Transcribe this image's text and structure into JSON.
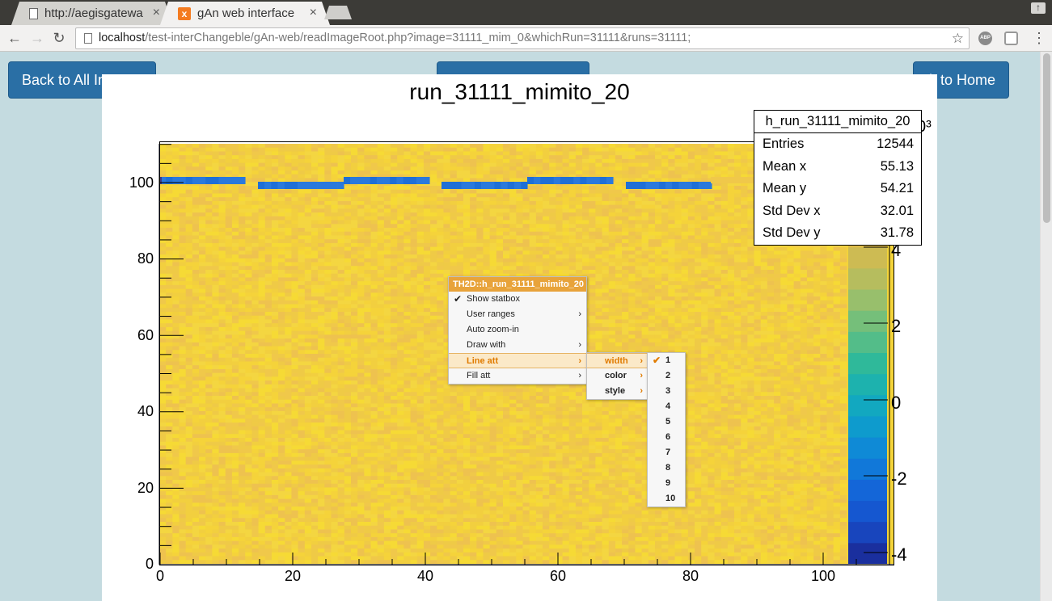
{
  "browser": {
    "tabs": [
      {
        "title": "http://aegisgatewa",
        "active": false,
        "icon": "page-icon"
      },
      {
        "title": "gAn web interface",
        "active": true,
        "icon": "xampp-icon"
      }
    ],
    "url_host": "localhost",
    "url_path": "/test-interChangeble/gAn-web/readImageRoot.php?image=31111_mim_0&whichRun=31111&runs=31111;",
    "ext_abp": "ABP"
  },
  "page": {
    "btn_back_all": "Back to All Images",
    "btn_back_home": "Back to Home"
  },
  "plot": {
    "title": "run_31111_mimito_20",
    "y_ticks": [
      "100",
      "80",
      "60",
      "40",
      "20",
      "0"
    ],
    "x_ticks": [
      "0",
      "20",
      "40",
      "60",
      "80",
      "100"
    ],
    "z_ticks": [
      "4",
      "2",
      "0",
      "-2",
      "-4"
    ],
    "z_exponent": "0³",
    "colors": {
      "background": "#f4d43a",
      "band": "#1f6fd6"
    }
  },
  "stats": {
    "title": "h_run_31111_mimito_20",
    "rows": [
      {
        "label": "Entries",
        "value": "12544"
      },
      {
        "label": "Mean x",
        "value": "55.13"
      },
      {
        "label": "Mean y",
        "value": "54.21"
      },
      {
        "label": "Std Dev x",
        "value": "32.01"
      },
      {
        "label": "Std Dev y",
        "value": "31.78"
      }
    ]
  },
  "context_menu": {
    "header": "TH2D::h_run_31111_mimito_20",
    "items": [
      {
        "label": "Show statbox",
        "checked": true,
        "submenu": false
      },
      {
        "label": "User ranges",
        "checked": false,
        "submenu": true
      },
      {
        "label": "Auto zoom-in",
        "checked": false,
        "submenu": false
      },
      {
        "label": "Draw with",
        "checked": false,
        "submenu": true
      },
      {
        "label": "Line att",
        "checked": false,
        "submenu": true,
        "highlighted": true
      },
      {
        "label": "Fill att",
        "checked": false,
        "submenu": true
      }
    ],
    "line_att_submenu": [
      "width",
      "color",
      "style"
    ],
    "width_options": [
      "1",
      "2",
      "3",
      "4",
      "5",
      "6",
      "7",
      "8",
      "9",
      "10"
    ],
    "width_selected": "1"
  }
}
